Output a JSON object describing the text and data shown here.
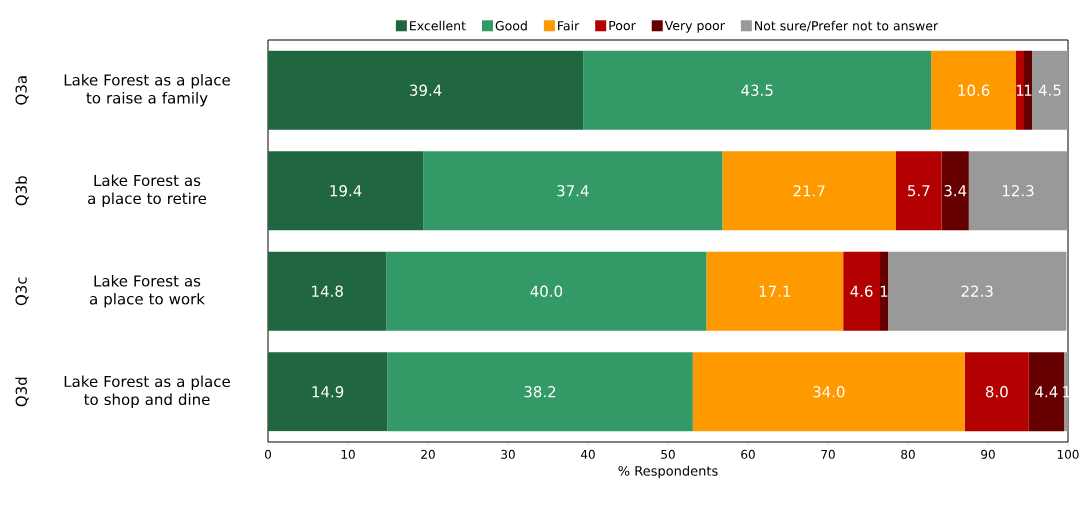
{
  "chart_data": {
    "type": "bar",
    "orientation": "horizontal",
    "stacked": true,
    "xlabel": "% Respondents",
    "categories": [
      "Lake Forest as a place to raise a family",
      "Lake Forest as a place to retire",
      "Lake Forest as a place to work",
      "Lake Forest as a place to shop and dine"
    ],
    "series": [
      {
        "name": "Excellent",
        "color": "#206641",
        "values": [
          39.4,
          19.4,
          14.8,
          14.9
        ],
        "value_labels": [
          "39.4",
          "19.4",
          "14.8",
          "14.9"
        ]
      },
      {
        "name": "Good",
        "color": "#339966",
        "values": [
          43.5,
          37.4,
          40.0,
          38.2
        ],
        "value_labels": [
          "43.5",
          "37.4",
          "40.0",
          "38.2"
        ]
      },
      {
        "name": "Fair",
        "color": "#ff9900",
        "values": [
          10.6,
          21.7,
          17.1,
          34.0
        ],
        "value_labels": [
          "10.6",
          "21.7",
          "17.1",
          "34.0"
        ]
      },
      {
        "name": "Poor",
        "color": "#b30000",
        "values": [
          1.0,
          5.7,
          4.6,
          8.0
        ],
        "value_labels": [
          "1",
          "5.7",
          "4.6",
          "8.0"
        ]
      },
      {
        "name": "Very poor",
        "color": "#660000",
        "values": [
          1.0,
          3.4,
          1.0,
          4.4
        ],
        "value_labels": [
          "1",
          "3.4",
          "1",
          "4.4"
        ]
      },
      {
        "name": "Not sure/Prefer not to answer",
        "color": "#999999",
        "values": [
          4.5,
          12.3,
          22.3,
          0.6
        ],
        "value_labels": [
          "4.5",
          "12.3",
          "22.3",
          "1"
        ]
      }
    ],
    "annotations": [
      "Q3a",
      "Q3b",
      "Q3c",
      "Q3d"
    ],
    "xlim": [
      0,
      100
    ],
    "xticks": [
      0,
      10,
      20,
      30,
      40,
      50,
      60,
      70,
      80,
      90,
      100
    ],
    "legend": "top",
    "grid": false
  }
}
